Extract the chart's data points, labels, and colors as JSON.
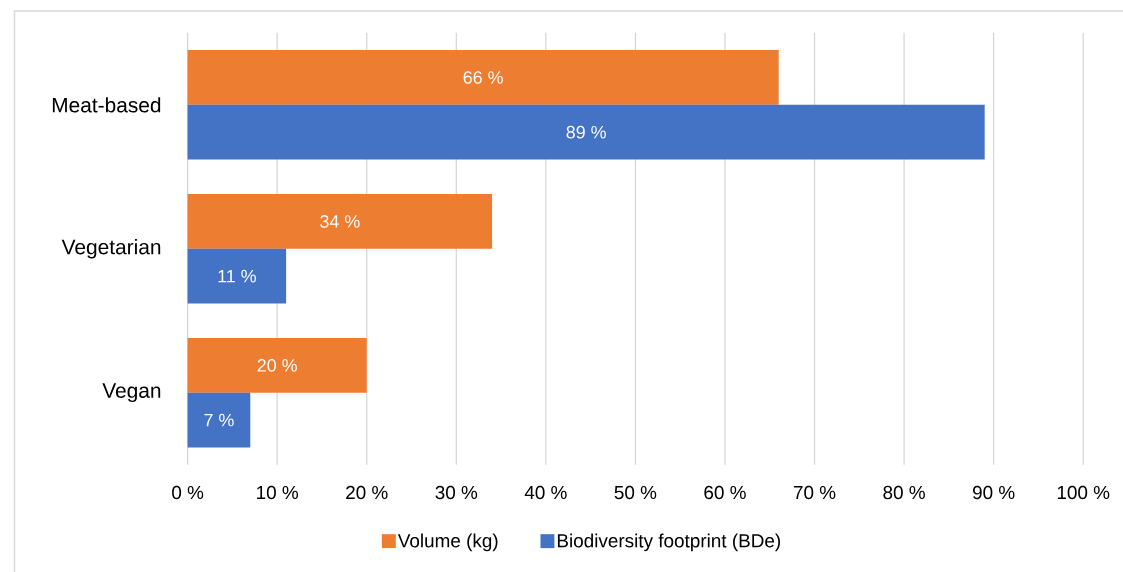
{
  "chart_data": {
    "type": "bar",
    "orientation": "horizontal",
    "categories": [
      "Meat-based",
      "Vegetarian",
      "Vegan"
    ],
    "series": [
      {
        "name": "Volume (kg)",
        "color": "#ed7d31",
        "values": [
          66,
          34,
          20
        ],
        "value_labels": [
          "66 %",
          "34 %",
          "20 %"
        ]
      },
      {
        "name": "Biodiversity footprint (BDe)",
        "color": "#4472c4",
        "values": [
          89,
          11,
          7
        ],
        "value_labels": [
          "89 %",
          "11 %",
          "7 %"
        ]
      }
    ],
    "xlim": [
      0,
      100
    ],
    "xticks": [
      {
        "value": 0,
        "label": "0 %"
      },
      {
        "value": 10,
        "label": "10 %"
      },
      {
        "value": 20,
        "label": "20 %"
      },
      {
        "value": 30,
        "label": "30 %"
      },
      {
        "value": 40,
        "label": "40 %"
      },
      {
        "value": 50,
        "label": "50 %"
      },
      {
        "value": 60,
        "label": "60 %"
      },
      {
        "value": 70,
        "label": "70 %"
      },
      {
        "value": 80,
        "label": "80 %"
      },
      {
        "value": 90,
        "label": "90 %"
      },
      {
        "value": 100,
        "label": "100 %"
      }
    ],
    "grid": "x",
    "legend": "bottom"
  }
}
